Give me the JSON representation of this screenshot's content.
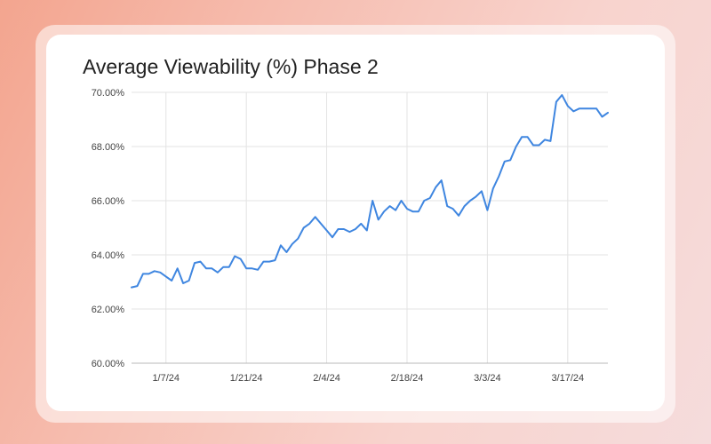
{
  "chart_data": {
    "type": "line",
    "title": "Average Viewability (%) Phase 2",
    "xlabel": "",
    "ylabel": "",
    "x_range": [
      "2024-01-01",
      "2024-03-24"
    ],
    "ylim": [
      60,
      70
    ],
    "y_ticks": [
      60,
      62,
      64,
      66,
      68,
      70
    ],
    "y_tick_labels": [
      "60.00%",
      "62.00%",
      "64.00%",
      "66.00%",
      "68.00%",
      "70.00%"
    ],
    "x_ticks": [
      "2024-01-07",
      "2024-01-21",
      "2024-02-04",
      "2024-02-18",
      "2024-03-03",
      "2024-03-17"
    ],
    "x_tick_labels": [
      "1/7/24",
      "1/21/24",
      "2/4/24",
      "2/18/24",
      "3/3/24",
      "3/17/24"
    ],
    "grid": "on",
    "legend": "none",
    "series_color": "#3f86e0",
    "series": [
      {
        "x": [
          "2024-01-01",
          "2024-01-02",
          "2024-01-03",
          "2024-01-04",
          "2024-01-05",
          "2024-01-06",
          "2024-01-07",
          "2024-01-08",
          "2024-01-09",
          "2024-01-10",
          "2024-01-11",
          "2024-01-12",
          "2024-01-13",
          "2024-01-14",
          "2024-01-15",
          "2024-01-16",
          "2024-01-17",
          "2024-01-18",
          "2024-01-19",
          "2024-01-20",
          "2024-01-21",
          "2024-01-22",
          "2024-01-23",
          "2024-01-24",
          "2024-01-25",
          "2024-01-26",
          "2024-01-27",
          "2024-01-28",
          "2024-01-29",
          "2024-01-30",
          "2024-01-31",
          "2024-02-01",
          "2024-02-02",
          "2024-02-03",
          "2024-02-04",
          "2024-02-05",
          "2024-02-06",
          "2024-02-07",
          "2024-02-08",
          "2024-02-09",
          "2024-02-10",
          "2024-02-11",
          "2024-02-12",
          "2024-02-13",
          "2024-02-14",
          "2024-02-15",
          "2024-02-16",
          "2024-02-17",
          "2024-02-18",
          "2024-02-19",
          "2024-02-20",
          "2024-02-21",
          "2024-02-22",
          "2024-02-23",
          "2024-02-24",
          "2024-02-25",
          "2024-02-26",
          "2024-02-27",
          "2024-02-28",
          "2024-02-29",
          "2024-03-01",
          "2024-03-02",
          "2024-03-03",
          "2024-03-04",
          "2024-03-05",
          "2024-03-06",
          "2024-03-07",
          "2024-03-08",
          "2024-03-09",
          "2024-03-10",
          "2024-03-11",
          "2024-03-12",
          "2024-03-13",
          "2024-03-14",
          "2024-03-15",
          "2024-03-16",
          "2024-03-17",
          "2024-03-18",
          "2024-03-19",
          "2024-03-20",
          "2024-03-21",
          "2024-03-22",
          "2024-03-23",
          "2024-03-24"
        ],
        "y": [
          62.8,
          62.85,
          63.3,
          63.3,
          63.4,
          63.35,
          63.2,
          63.05,
          63.5,
          62.95,
          63.05,
          63.7,
          63.75,
          63.5,
          63.5,
          63.35,
          63.55,
          63.55,
          63.95,
          63.85,
          63.5,
          63.5,
          63.45,
          63.75,
          63.75,
          63.8,
          64.35,
          64.1,
          64.4,
          64.6,
          65.0,
          65.15,
          65.4,
          65.15,
          64.9,
          64.65,
          64.95,
          64.95,
          64.85,
          64.95,
          65.15,
          64.9,
          66.0,
          65.3,
          65.6,
          65.8,
          65.65,
          66.0,
          65.7,
          65.6,
          65.6,
          66.0,
          66.1,
          66.5,
          66.75,
          65.8,
          65.7,
          65.45,
          65.8,
          66.0,
          66.15,
          66.35,
          65.65,
          66.45,
          66.9,
          67.45,
          67.5,
          68.0,
          68.35,
          68.35,
          68.05,
          68.05,
          68.25,
          68.2,
          69.65,
          69.9,
          69.5,
          69.3,
          69.4,
          69.4,
          69.4,
          69.4,
          69.1,
          69.25
        ]
      }
    ]
  }
}
